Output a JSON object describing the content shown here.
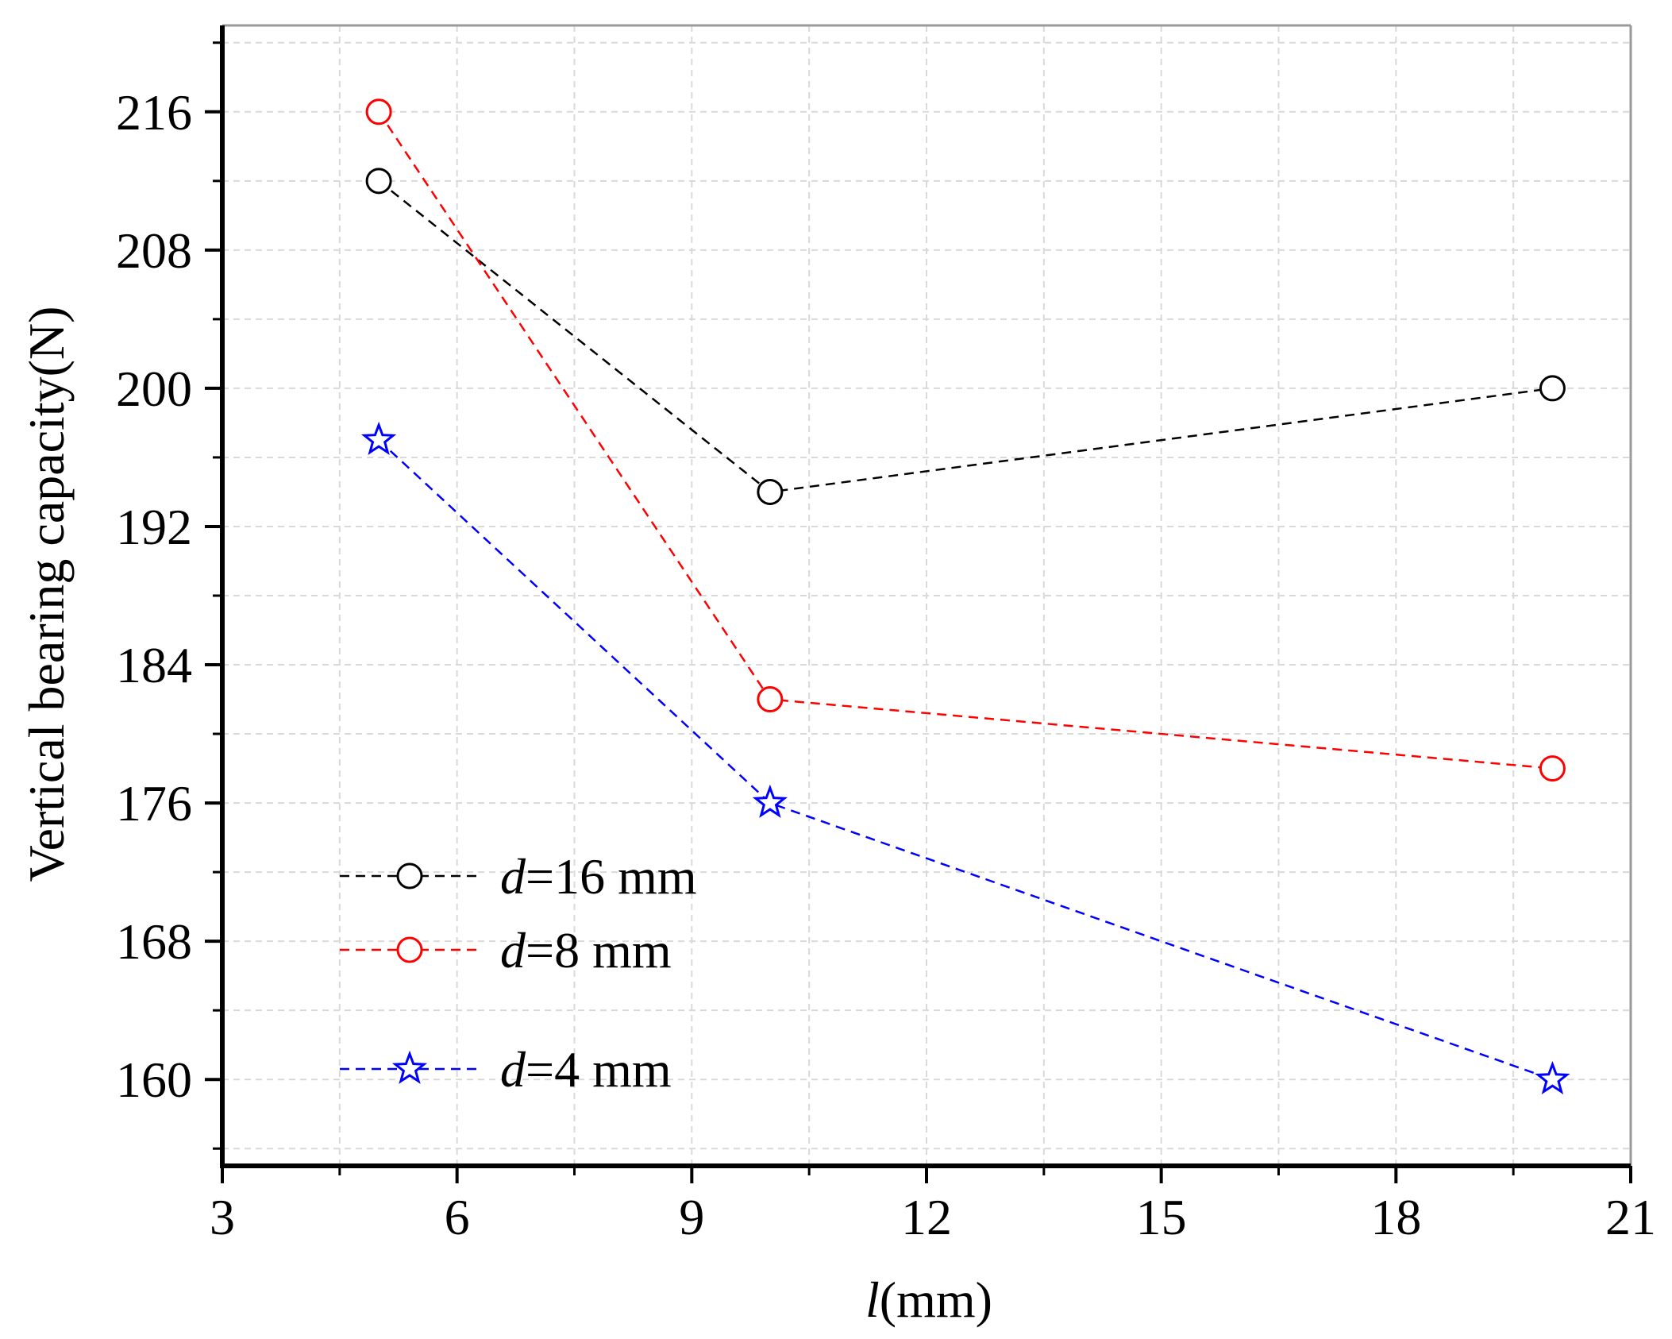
{
  "chart_data": {
    "type": "line",
    "title": "",
    "xlabel_var": "l",
    "xlabel_unit": "(mm)",
    "ylabel": "Vertical bearing capacity(N)",
    "xlim": [
      3,
      21
    ],
    "ylim": [
      155,
      221
    ],
    "x_ticks": [
      3,
      6,
      9,
      12,
      15,
      18,
      21
    ],
    "y_ticks": [
      160,
      168,
      176,
      184,
      192,
      200,
      208,
      216
    ],
    "x_minor_step": 1.5,
    "y_minor_step": 4,
    "grid": true,
    "legend_position": "bottom-left",
    "series": [
      {
        "name_var": "d",
        "name_rest": "=16 mm",
        "color": "#000000",
        "marker": "circle",
        "x": [
          5,
          10,
          20
        ],
        "y": [
          212,
          194,
          200
        ]
      },
      {
        "name_var": "d",
        "name_rest": "=8 mm",
        "color": "#ff0000",
        "marker": "circle",
        "x": [
          5,
          10,
          20
        ],
        "y": [
          216,
          182,
          178
        ]
      },
      {
        "name_var": "d",
        "name_rest": "=4 mm",
        "color": "#0000ff",
        "marker": "star",
        "x": [
          5,
          10,
          20
        ],
        "y": [
          197,
          176,
          160
        ]
      }
    ]
  }
}
